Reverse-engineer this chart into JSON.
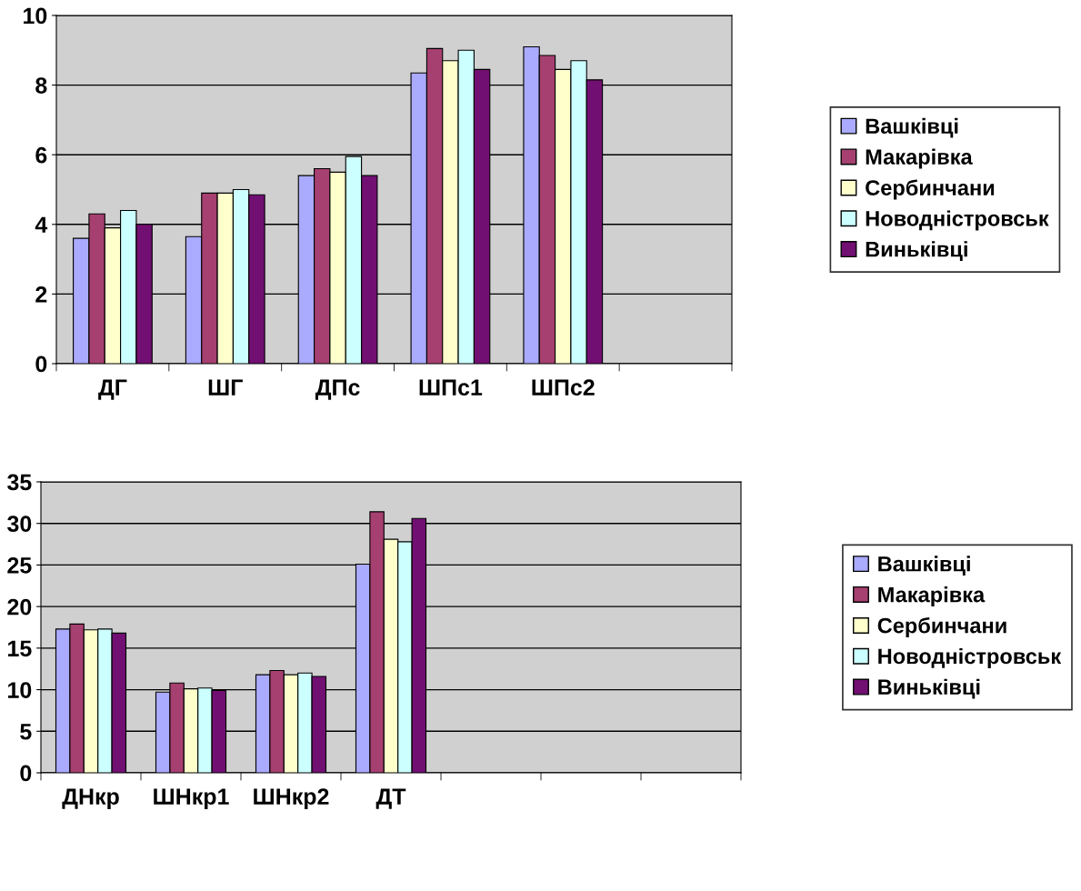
{
  "chart_data": [
    {
      "type": "bar",
      "categories": [
        "ДГ",
        "ШГ",
        "ДПс",
        "ШПс1",
        "ШПс2",
        null
      ],
      "ylim": [
        0,
        10
      ],
      "yticks": [
        0,
        2,
        4,
        6,
        8,
        10
      ],
      "grid": "y",
      "legend": "right",
      "series": [
        {
          "name": "Вашківці",
          "color": "#aaaaff",
          "values": [
            3.6,
            3.65,
            5.4,
            8.35,
            9.1,
            null
          ]
        },
        {
          "name": "Макарівка",
          "color": "#a64070",
          "values": [
            4.3,
            4.9,
            5.6,
            9.05,
            8.85,
            null
          ]
        },
        {
          "name": "Сербинчани",
          "color": "#ffffcc",
          "values": [
            3.9,
            4.9,
            5.5,
            8.7,
            8.45,
            null
          ]
        },
        {
          "name": "Новодністровськ",
          "color": "#ccffff",
          "values": [
            4.4,
            5.0,
            5.95,
            9.0,
            8.7,
            null
          ]
        },
        {
          "name": "Виньківці",
          "color": "#720f72",
          "values": [
            4.0,
            4.85,
            5.4,
            8.45,
            8.15,
            null
          ]
        }
      ]
    },
    {
      "type": "bar",
      "categories": [
        "ДНкр",
        "ШНкр1",
        "ШНкр2",
        "ДТ",
        null,
        null,
        null
      ],
      "ylim": [
        0,
        35
      ],
      "yticks": [
        0,
        5,
        10,
        15,
        20,
        25,
        30,
        35
      ],
      "grid": "y",
      "legend": "right",
      "series": [
        {
          "name": "Вашківці",
          "color": "#aaaaff",
          "values": [
            17.3,
            9.7,
            11.8,
            25.1,
            null,
            null,
            null
          ]
        },
        {
          "name": "Макарівка",
          "color": "#a64070",
          "values": [
            17.9,
            10.8,
            12.3,
            31.4,
            null,
            null,
            null
          ]
        },
        {
          "name": "Сербинчани",
          "color": "#ffffcc",
          "values": [
            17.2,
            10.1,
            11.8,
            28.1,
            null,
            null,
            null
          ]
        },
        {
          "name": "Новодністровськ",
          "color": "#ccffff",
          "values": [
            17.3,
            10.2,
            12.0,
            27.8,
            null,
            null,
            null
          ]
        },
        {
          "name": "Виньківці",
          "color": "#720f72",
          "values": [
            16.8,
            9.9,
            11.6,
            30.6,
            null,
            null,
            null
          ]
        }
      ]
    }
  ]
}
